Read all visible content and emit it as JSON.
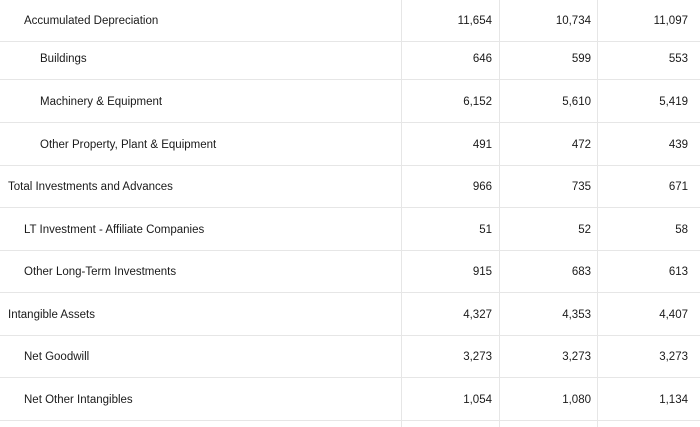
{
  "table": {
    "rows": [
      {
        "label": "Accumulated Depreciation",
        "level": 1,
        "values": [
          "11,654",
          "10,734",
          "11,097"
        ]
      },
      {
        "label": "Buildings",
        "level": 2,
        "values": [
          "646",
          "599",
          "553"
        ]
      },
      {
        "label": "Machinery & Equipment",
        "level": 2,
        "values": [
          "6,152",
          "5,610",
          "5,419"
        ]
      },
      {
        "label": "Other Property, Plant & Equipment",
        "level": 2,
        "values": [
          "491",
          "472",
          "439"
        ]
      },
      {
        "label": "Total Investments and Advances",
        "level": 0,
        "values": [
          "966",
          "735",
          "671"
        ]
      },
      {
        "label": "LT Investment - Affiliate Companies",
        "level": 1,
        "values": [
          "51",
          "52",
          "58"
        ]
      },
      {
        "label": "Other Long-Term Investments",
        "level": 1,
        "values": [
          "915",
          "683",
          "613"
        ]
      },
      {
        "label": "Intangible Assets",
        "level": 0,
        "values": [
          "4,327",
          "4,353",
          "4,407"
        ]
      },
      {
        "label": "Net Goodwill",
        "level": 1,
        "values": [
          "3,273",
          "3,273",
          "3,273"
        ]
      },
      {
        "label": "Net Other Intangibles",
        "level": 1,
        "values": [
          "1,054",
          "1,080",
          "1,134"
        ]
      }
    ]
  }
}
